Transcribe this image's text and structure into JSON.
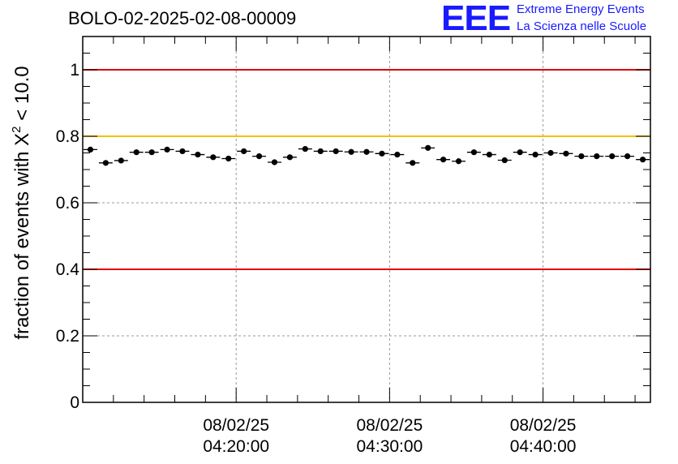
{
  "header": {
    "title": "BOLO-02-2025-02-08-00009",
    "logo_text": "EEE",
    "logo_line1": "Extreme Energy Events",
    "logo_line2": "La Scienza nelle Scuole"
  },
  "colors": {
    "logo": "#1a1aff",
    "red_threshold": "#e00000",
    "yellow_threshold": "#f5c000",
    "points": "#000000",
    "grid": "#999999"
  },
  "chart_data": {
    "type": "scatter",
    "title": "BOLO-02-2025-02-08-00009",
    "ylabel": "fraction of events with X² < 10.0",
    "xlabel": "",
    "ylim": [
      0,
      1.1
    ],
    "y_ticks": [
      0,
      0.2,
      0.4,
      0.6,
      0.8,
      1
    ],
    "y_tick_labels": [
      "0",
      "0.2",
      "0.4",
      "0.6",
      "0.8",
      "1"
    ],
    "x_range_minutes": [
      10.0,
      47.0
    ],
    "x_ticks_minutes": [
      20,
      30,
      40
    ],
    "x_tick_labels": [
      {
        "date": "08/02/25",
        "time": "04:20:00"
      },
      {
        "date": "08/02/25",
        "time": "04:30:00"
      },
      {
        "date": "08/02/25",
        "time": "04:40:00"
      }
    ],
    "reference_lines": [
      {
        "y": 1.0,
        "color": "red"
      },
      {
        "y": 0.8,
        "color": "yellow"
      },
      {
        "y": 0.4,
        "color": "red"
      }
    ],
    "grid": true,
    "x_minutes": [
      10.5,
      11.5,
      12.5,
      13.5,
      14.5,
      15.5,
      16.5,
      17.5,
      18.5,
      19.5,
      20.5,
      21.5,
      22.5,
      23.5,
      24.5,
      25.5,
      26.5,
      27.5,
      28.5,
      29.5,
      30.5,
      31.5,
      32.5,
      33.5,
      34.5,
      35.5,
      36.5,
      37.5,
      38.5,
      39.5,
      40.5,
      41.5,
      42.5,
      43.5,
      44.5,
      45.5,
      46.5
    ],
    "values": [
      0.76,
      0.72,
      0.727,
      0.752,
      0.752,
      0.76,
      0.755,
      0.745,
      0.737,
      0.733,
      0.755,
      0.74,
      0.722,
      0.737,
      0.762,
      0.755,
      0.755,
      0.753,
      0.753,
      0.748,
      0.745,
      0.72,
      0.765,
      0.73,
      0.725,
      0.752,
      0.745,
      0.728,
      0.752,
      0.745,
      0.75,
      0.748,
      0.74,
      0.74,
      0.74,
      0.74,
      0.73
    ],
    "errors": [
      0.008,
      0.008,
      0.008,
      0.008,
      0.008,
      0.008,
      0.008,
      0.008,
      0.008,
      0.008,
      0.008,
      0.008,
      0.008,
      0.008,
      0.008,
      0.008,
      0.008,
      0.008,
      0.008,
      0.008,
      0.008,
      0.008,
      0.008,
      0.008,
      0.008,
      0.008,
      0.008,
      0.008,
      0.008,
      0.008,
      0.008,
      0.008,
      0.008,
      0.008,
      0.008,
      0.008,
      0.008
    ]
  }
}
